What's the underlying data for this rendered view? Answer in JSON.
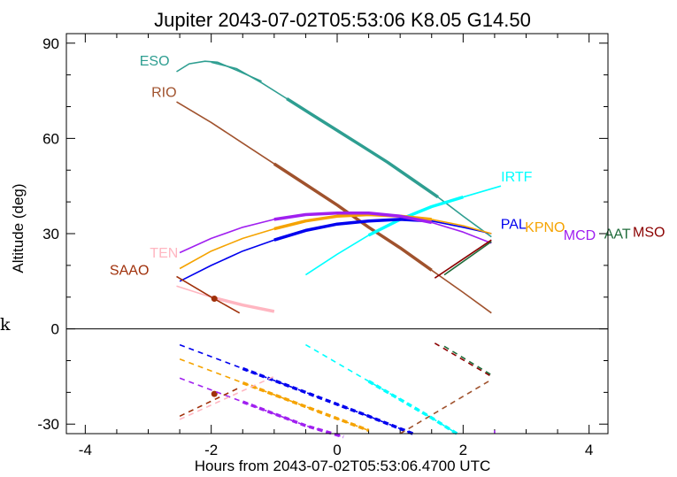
{
  "chart_data": {
    "type": "line",
    "title": "Jupiter 2043-07-02T05:53:06  K8.05  G14.50",
    "xlabel": "Hours from 2043-07-02T05:53:06.4700 UTC",
    "ylabel": "Altitude (deg)",
    "side_label": "k",
    "xlim": [
      -4.3,
      4.3
    ],
    "ylim": [
      -33,
      93
    ],
    "x_ticks": [
      {
        "value": -4,
        "label": "-4"
      },
      {
        "value": -2,
        "label": "-2"
      },
      {
        "value": 0,
        "label": "0"
      },
      {
        "value": 2,
        "label": "2"
      },
      {
        "value": 4,
        "label": "4"
      }
    ],
    "y_ticks": [
      {
        "value": 90,
        "label": "90"
      },
      {
        "value": 60,
        "label": "60"
      },
      {
        "value": 30,
        "label": "30"
      },
      {
        "value": 0,
        "label": "0"
      },
      {
        "value": -30,
        "label": "-30"
      }
    ],
    "series": [
      {
        "name": "ESO",
        "color": "#2e9e91",
        "x": [
          -2.0,
          -1.6,
          -1.2,
          -0.8,
          -0.4,
          0.0,
          0.4,
          0.8,
          1.2,
          1.6,
          2.0,
          2.45
        ],
        "y": [
          84,
          82,
          77.5,
          72.5,
          67.5,
          62.5,
          57.5,
          52.5,
          47,
          41.5,
          35.5,
          29
        ],
        "curve": [
          [
            -2.55,
            81
          ],
          [
            -2.35,
            83.5
          ],
          [
            -2.1,
            84.3
          ],
          [
            -1.9,
            84
          ],
          [
            -1.6,
            81.5
          ],
          [
            -1.2,
            78
          ]
        ]
      },
      {
        "name": "RIO",
        "color": "#a0522d",
        "x": [
          -2.55,
          -2.0,
          -1.5,
          -1.0,
          -0.5,
          0.0,
          0.5,
          1.0,
          1.5,
          2.0,
          2.45
        ],
        "y": [
          71.5,
          65,
          58.5,
          52,
          45.5,
          39,
          32,
          25.5,
          18.5,
          11.5,
          5
        ]
      },
      {
        "name": "IRTF",
        "color": "#00ffff",
        "x": [
          -0.5,
          0.0,
          0.5,
          1.0,
          1.5,
          2.0,
          2.6
        ],
        "y": [
          17,
          23.5,
          29.5,
          34.5,
          38.5,
          41.5,
          45
        ]
      },
      {
        "name": "PAL",
        "color": "#0000ee",
        "x": [
          -2.5,
          -2.0,
          -1.5,
          -1.0,
          -0.5,
          0.0,
          0.5,
          1.0,
          1.5,
          2.0,
          2.45
        ],
        "y": [
          15,
          20,
          24.5,
          28,
          31,
          33,
          34,
          34.5,
          34,
          32,
          30
        ]
      },
      {
        "name": "KPNO",
        "color": "#f5a300",
        "x": [
          -2.5,
          -2.0,
          -1.5,
          -1.0,
          -0.5,
          0.0,
          0.5,
          1.0,
          1.5,
          2.0,
          2.45
        ],
        "y": [
          19,
          24.5,
          28.5,
          31.5,
          34,
          35.5,
          36,
          35.5,
          34.5,
          32.5,
          30
        ]
      },
      {
        "name": "MCD",
        "color": "#a020f0",
        "x": [
          -2.5,
          -2.0,
          -1.5,
          -1.0,
          -0.5,
          0.0,
          0.5,
          1.0,
          1.5,
          2.0,
          2.45
        ],
        "y": [
          24,
          28.5,
          32,
          34.5,
          36,
          36.5,
          36.5,
          35.5,
          33.5,
          30.5,
          27
        ]
      },
      {
        "name": "AAT",
        "color": "#1f6b3a",
        "x": [
          1.7,
          2.45
        ],
        "y": [
          17,
          27.5
        ]
      },
      {
        "name": "MSO",
        "color": "#8b0000",
        "x": [
          1.55,
          2.45
        ],
        "y": [
          16,
          28
        ]
      },
      {
        "name": "TEN",
        "color": "#ffb6c1",
        "x": [
          -2.55,
          -2.0,
          -1.5,
          -1.0
        ],
        "y": [
          13.5,
          10,
          7.5,
          5.5
        ]
      },
      {
        "name": "SAAO",
        "color": "#a0300a",
        "x": [
          -2.55,
          -2.0,
          -1.55
        ],
        "y": [
          16.5,
          10,
          5
        ]
      }
    ],
    "lower_panel": [
      {
        "color": "#0000ee",
        "x": [
          -2.5,
          -1.5,
          -0.5,
          0.5,
          1.2
        ],
        "y": [
          -5,
          -12.5,
          -20,
          -27.5,
          -33
        ]
      },
      {
        "color": "#f5a300",
        "x": [
          -2.5,
          -1.5,
          -0.5,
          0.5
        ],
        "y": [
          -9.5,
          -17,
          -24.5,
          -32
        ]
      },
      {
        "color": "#a020f0",
        "x": [
          -2.5,
          -1.5,
          -0.5,
          0.1
        ],
        "y": [
          -15.5,
          -23,
          -30.5,
          -34
        ]
      },
      {
        "color": "#00ffff",
        "x": [
          -0.5,
          0.5,
          1.5,
          1.9
        ],
        "y": [
          -5,
          -16.5,
          -28,
          -33
        ]
      },
      {
        "color": "#a0522d",
        "x": [
          1.0,
          2.45
        ],
        "y": [
          -33,
          -16
        ]
      },
      {
        "color": "#8b0000",
        "x": [
          1.55,
          2.45
        ],
        "y": [
          -4.5,
          -15
        ]
      },
      {
        "color": "#1f6b3a",
        "x": [
          1.7,
          2.45
        ],
        "y": [
          -5.5,
          -14.5
        ]
      },
      {
        "color": "#ffb6c1",
        "x": [
          -2.5,
          -1.0
        ],
        "y": [
          -28.5,
          -15
        ]
      },
      {
        "color": "#a0300a",
        "x": [
          -2.5,
          -1.55
        ],
        "y": [
          -27.5,
          -18.5
        ]
      },
      {
        "color": "#a020f0",
        "x": [
          2.5,
          2.5
        ],
        "y": [
          -32,
          -33
        ]
      }
    ],
    "markers": [
      {
        "color": "#a0300a",
        "x": -1.95,
        "y": 9.5
      },
      {
        "color": "#a0300a",
        "x": -1.95,
        "y": -20.5
      }
    ],
    "labels": [
      {
        "text": "ESO",
        "color": "#2e9e91",
        "x": -2.9,
        "y": 83,
        "anchor": "middle"
      },
      {
        "text": "RIO",
        "color": "#a0522d",
        "x": -2.75,
        "y": 73,
        "anchor": "middle"
      },
      {
        "text": "IRTF",
        "color": "#00ffff",
        "x": 2.85,
        "y": 46.5,
        "anchor": "middle"
      },
      {
        "text": "PAL",
        "color": "#0000ee",
        "x": 2.8,
        "y": 31.5,
        "anchor": "middle"
      },
      {
        "text": "KPNO",
        "color": "#f5a300",
        "x": 3.3,
        "y": 30.5,
        "anchor": "middle"
      },
      {
        "text": "MCD",
        "color": "#a020f0",
        "x": 3.85,
        "y": 28,
        "anchor": "middle"
      },
      {
        "text": "AAT",
        "color": "#1f6b3a",
        "x": 4.45,
        "y": 28.5,
        "anchor": "middle"
      },
      {
        "text": "MSO",
        "color": "#8b0000",
        "x": 4.95,
        "y": 29,
        "anchor": "middle"
      },
      {
        "text": "TEN",
        "color": "#ffb6c1",
        "x": -2.75,
        "y": 22.5,
        "anchor": "middle"
      },
      {
        "text": "SAAO",
        "color": "#a0300a",
        "x": -3.3,
        "y": 17,
        "anchor": "middle"
      }
    ]
  }
}
